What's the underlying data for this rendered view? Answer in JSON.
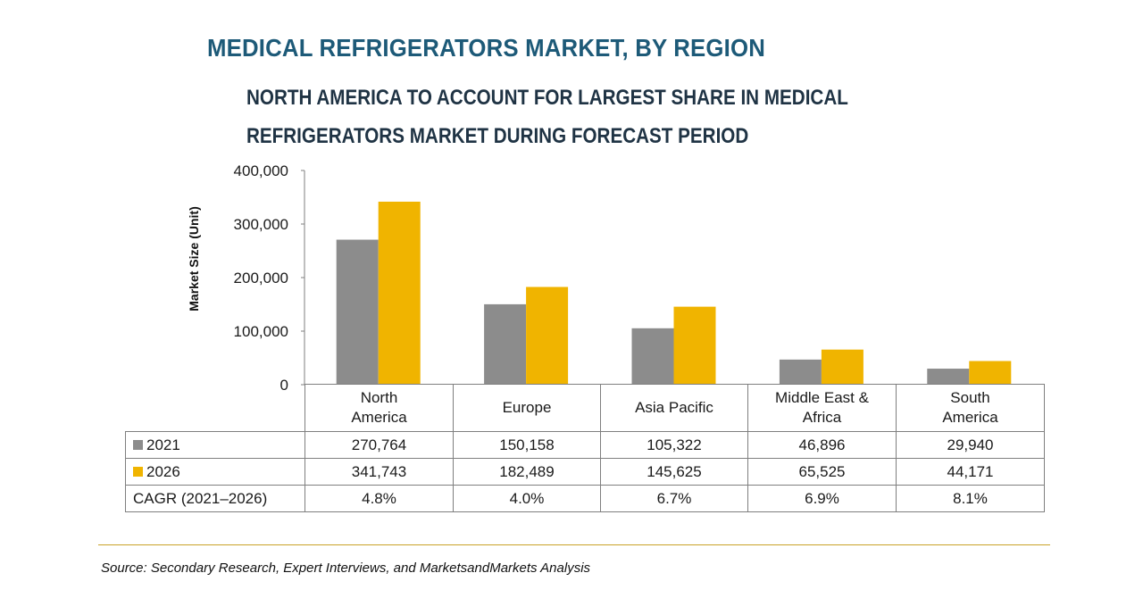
{
  "header": {
    "title": "MEDICAL REFRIGERATORS MARKET, BY REGION",
    "subtitle_lines": [
      "NORTH AMERICA TO ACCOUNT FOR LARGEST SHARE IN MEDICAL",
      "REFRIGERATORS MARKET DURING FORECAST PERIOD"
    ]
  },
  "chart_data": {
    "type": "bar",
    "title": "MEDICAL REFRIGERATORS MARKET, BY REGION",
    "subtitle": "NORTH AMERICA TO ACCOUNT FOR LARGEST SHARE IN MEDICAL REFRIGERATORS MARKET DURING FORECAST PERIOD",
    "xlabel": "",
    "ylabel": "Market Size (Unit)",
    "ylim": [
      0,
      400000
    ],
    "yticks": [
      0,
      100000,
      200000,
      300000,
      400000
    ],
    "ytick_labels": [
      "0",
      "100,000",
      "200,000",
      "300,000",
      "400,000"
    ],
    "grid": false,
    "categories": [
      [
        "North",
        "America"
      ],
      [
        "Europe"
      ],
      [
        "Asia Pacific"
      ],
      [
        "Middle East &",
        "Africa"
      ],
      [
        "South",
        "America"
      ]
    ],
    "series": [
      {
        "name": "2021",
        "color": "#8c8c8c",
        "values": [
          270764,
          150158,
          105322,
          46896,
          29940
        ],
        "labels": [
          "270,764",
          "150,158",
          "105,322",
          "46,896",
          "29,940"
        ]
      },
      {
        "name": "2026",
        "color": "#f0b400",
        "values": [
          341743,
          182489,
          145625,
          65525,
          44171
        ],
        "labels": [
          "341,743",
          "182,489",
          "145,625",
          "65,525",
          "44,171"
        ]
      }
    ],
    "cagr": {
      "label": "CAGR (2021–2026)",
      "values": [
        "4.8%",
        "4.0%",
        "6.7%",
        "6.9%",
        "8.1%"
      ]
    }
  },
  "footer": {
    "source": "Source: Secondary Research, Expert Interviews, and MarketsandMarkets Analysis"
  }
}
